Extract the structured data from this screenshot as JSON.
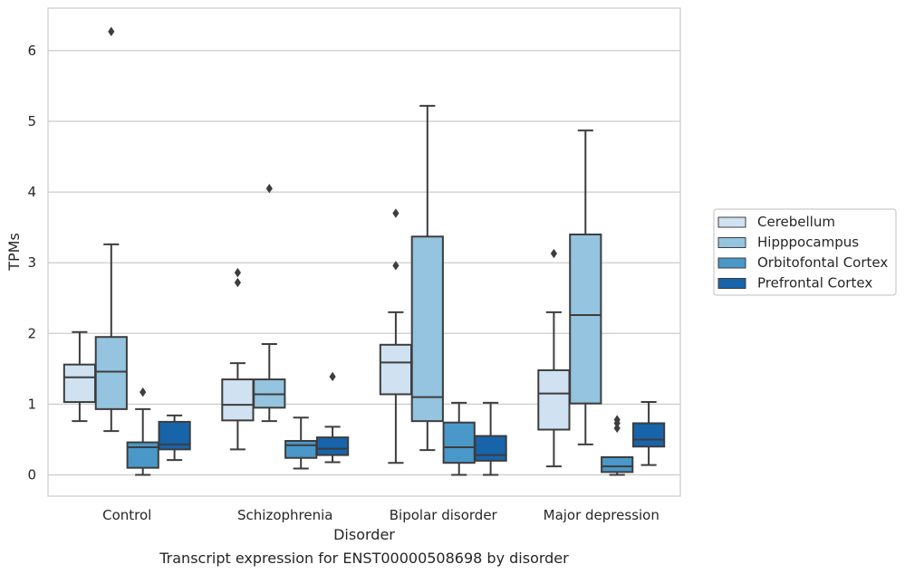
{
  "chart_data": {
    "type": "box",
    "caption": "Transcript expression for ENST00000508698 by disorder",
    "xlabel": "Disorder",
    "ylabel": "TPMs",
    "ylim": [
      -0.3,
      6.6
    ],
    "yticks": [
      0,
      1,
      2,
      3,
      4,
      5,
      6
    ],
    "grid": "horizontal",
    "legend_position": "right",
    "categories": [
      "Control",
      "Schizophrenia",
      "Bipolar disorder",
      "Major depression"
    ],
    "series": [
      {
        "name": "Cerebellum",
        "color": "#d0e1f2",
        "boxes": [
          {
            "whislo": 0.76,
            "q1": 1.03,
            "med": 1.38,
            "q3": 1.56,
            "whishi": 2.02,
            "fliers": []
          },
          {
            "whislo": 0.36,
            "q1": 0.77,
            "med": 0.99,
            "q3": 1.35,
            "whishi": 1.58,
            "fliers": [
              2.72,
              2.86
            ]
          },
          {
            "whislo": 0.17,
            "q1": 1.14,
            "med": 1.59,
            "q3": 1.84,
            "whishi": 2.3,
            "fliers": [
              2.96,
              3.7
            ]
          },
          {
            "whislo": 0.12,
            "q1": 0.64,
            "med": 1.15,
            "q3": 1.48,
            "whishi": 2.3,
            "fliers": [
              3.13
            ]
          }
        ]
      },
      {
        "name": "Hipppocampus",
        "color": "#94c4df",
        "boxes": [
          {
            "whislo": 0.62,
            "q1": 0.93,
            "med": 1.46,
            "q3": 1.95,
            "whishi": 3.26,
            "fliers": [
              6.27
            ]
          },
          {
            "whislo": 0.76,
            "q1": 0.95,
            "med": 1.14,
            "q3": 1.35,
            "whishi": 1.85,
            "fliers": [
              4.05
            ]
          },
          {
            "whislo": 0.35,
            "q1": 0.76,
            "med": 1.1,
            "q3": 3.37,
            "whishi": 5.22,
            "fliers": []
          },
          {
            "whislo": 0.43,
            "q1": 1.01,
            "med": 2.26,
            "q3": 3.4,
            "whishi": 4.87,
            "fliers": []
          }
        ]
      },
      {
        "name": "Orbitofontal Cortex",
        "color": "#4a98c9",
        "boxes": [
          {
            "whislo": 0.0,
            "q1": 0.1,
            "med": 0.39,
            "q3": 0.46,
            "whishi": 0.93,
            "fliers": [
              1.17
            ]
          },
          {
            "whislo": 0.09,
            "q1": 0.24,
            "med": 0.42,
            "q3": 0.48,
            "whishi": 0.81,
            "fliers": []
          },
          {
            "whislo": 0.0,
            "q1": 0.17,
            "med": 0.39,
            "q3": 0.74,
            "whishi": 1.02,
            "fliers": []
          },
          {
            "whislo": 0.0,
            "q1": 0.04,
            "med": 0.12,
            "q3": 0.25,
            "whishi": 0.25,
            "fliers": [
              0.66,
              0.73,
              0.78
            ]
          }
        ]
      },
      {
        "name": "Prefrontal Cortex",
        "color": "#1764ab",
        "boxes": [
          {
            "whislo": 0.21,
            "q1": 0.36,
            "med": 0.43,
            "q3": 0.75,
            "whishi": 0.84,
            "fliers": []
          },
          {
            "whislo": 0.18,
            "q1": 0.28,
            "med": 0.37,
            "q3": 0.53,
            "whishi": 0.68,
            "fliers": [
              1.39
            ]
          },
          {
            "whislo": 0.0,
            "q1": 0.2,
            "med": 0.28,
            "q3": 0.55,
            "whishi": 1.02,
            "fliers": []
          },
          {
            "whislo": 0.14,
            "q1": 0.4,
            "med": 0.5,
            "q3": 0.73,
            "whishi": 1.03,
            "fliers": []
          }
        ]
      }
    ]
  }
}
